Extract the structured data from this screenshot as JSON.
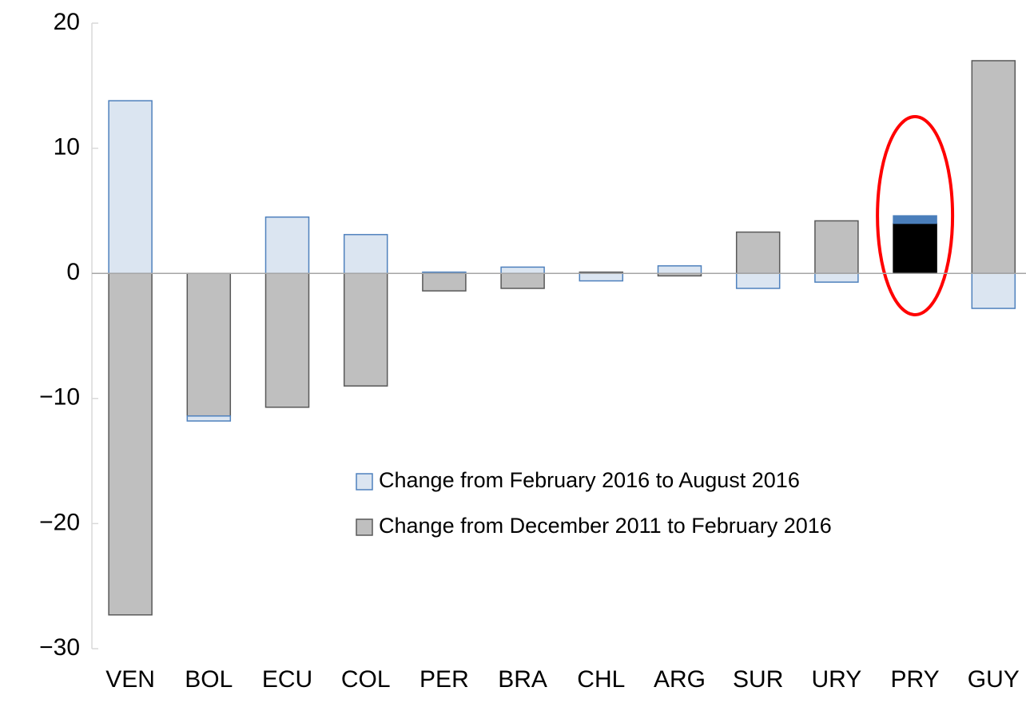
{
  "chart_data": {
    "type": "bar",
    "stacked": true,
    "categories": [
      "VEN",
      "BOL",
      "ECU",
      "COL",
      "PER",
      "BRA",
      "CHL",
      "ARG",
      "SUR",
      "URY",
      "PRY",
      "GUY"
    ],
    "series": [
      {
        "name": "Change from February 2016 to August 2016",
        "color": "#dbe5f1",
        "edge": "#4f81bd",
        "highlight_color": "#4a7ebb",
        "values": [
          13.8,
          -0.4,
          4.5,
          3.1,
          0.1,
          0.5,
          -0.6,
          0.6,
          -1.2,
          -0.7,
          0.6,
          -2.8
        ]
      },
      {
        "name": "Change from December 2011 to February 2016",
        "color": "#bfbfbf",
        "edge": "#595959",
        "highlight_color": "#000000",
        "values": [
          -27.3,
          -11.4,
          -10.7,
          -9.0,
          -1.4,
          -1.2,
          0.1,
          -0.2,
          3.3,
          4.2,
          4.0,
          17.0
        ]
      }
    ],
    "highlight": "PRY",
    "ylim": [
      -30,
      20
    ],
    "yticks": [
      {
        "value": -30,
        "label": "−30"
      },
      {
        "value": -20,
        "label": "−20"
      },
      {
        "value": -10,
        "label": "−10"
      },
      0,
      10,
      20
    ],
    "grid": false
  }
}
